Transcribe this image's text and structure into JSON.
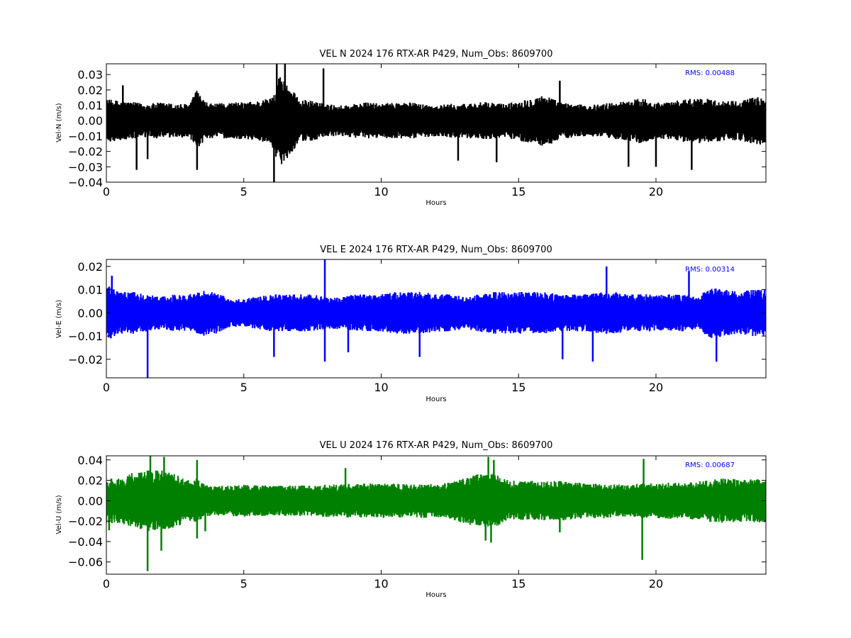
{
  "chart_data": [
    {
      "type": "line",
      "title": "VEL N 2024 176 RTX-AR  P429, Num_Obs: 8609700",
      "xlabel": "Hours",
      "ylabel": "Vel-N (m/s)",
      "annotation": "RMS:  0.00488",
      "annotation_color": "#0000ff",
      "color": "#000000",
      "xlim": [
        0,
        24
      ],
      "ylim": [
        -0.04,
        0.037
      ],
      "x_ticks": [
        0,
        5,
        10,
        15,
        20
      ],
      "y_ticks": [
        -0.04,
        -0.03,
        -0.02,
        -0.01,
        0.0,
        0.01,
        0.02,
        0.03
      ],
      "y_tick_labels": [
        "−0.04",
        "−0.03",
        "−0.02",
        "−0.01",
        "0.00",
        "0.01",
        "0.02",
        "0.03"
      ],
      "rms": 0.00488,
      "num_obs": 8609700,
      "envelope": [
        [
          0,
          0.014
        ],
        [
          0.5,
          0.013
        ],
        [
          1,
          0.012
        ],
        [
          1.5,
          0.011
        ],
        [
          2,
          0.012
        ],
        [
          2.5,
          0.011
        ],
        [
          3,
          0.011
        ],
        [
          3.3,
          0.02
        ],
        [
          3.6,
          0.012
        ],
        [
          4,
          0.011
        ],
        [
          4.5,
          0.012
        ],
        [
          5,
          0.012
        ],
        [
          5.5,
          0.013
        ],
        [
          6,
          0.015
        ],
        [
          6.3,
          0.03
        ],
        [
          6.7,
          0.022
        ],
        [
          7,
          0.014
        ],
        [
          7.5,
          0.013
        ],
        [
          8,
          0.011
        ],
        [
          8.5,
          0.01
        ],
        [
          9,
          0.011
        ],
        [
          9.5,
          0.012
        ],
        [
          10,
          0.011
        ],
        [
          10.5,
          0.012
        ],
        [
          11,
          0.012
        ],
        [
          11.5,
          0.011
        ],
        [
          12,
          0.01
        ],
        [
          12.5,
          0.011
        ],
        [
          13,
          0.011
        ],
        [
          13.5,
          0.012
        ],
        [
          14,
          0.012
        ],
        [
          14.5,
          0.011
        ],
        [
          15,
          0.013
        ],
        [
          15.5,
          0.015
        ],
        [
          16,
          0.017
        ],
        [
          16.5,
          0.012
        ],
        [
          17,
          0.011
        ],
        [
          17.5,
          0.01
        ],
        [
          18,
          0.011
        ],
        [
          18.5,
          0.012
        ],
        [
          19,
          0.013
        ],
        [
          19.5,
          0.015
        ],
        [
          20,
          0.012
        ],
        [
          20.5,
          0.012
        ],
        [
          21,
          0.014
        ],
        [
          21.5,
          0.015
        ],
        [
          22,
          0.014
        ],
        [
          22.5,
          0.013
        ],
        [
          23,
          0.013
        ],
        [
          23.5,
          0.015
        ],
        [
          24,
          0.016
        ]
      ],
      "spikes": [
        [
          1.1,
          -0.032
        ],
        [
          3.3,
          -0.032
        ],
        [
          6.1,
          -0.041
        ],
        [
          6.2,
          0.037
        ],
        [
          6.5,
          0.037
        ],
        [
          7.9,
          0.034
        ],
        [
          16.5,
          0.026
        ],
        [
          19.0,
          -0.03
        ],
        [
          20.0,
          -0.03
        ],
        [
          21.3,
          -0.032
        ],
        [
          0.6,
          0.023
        ],
        [
          1.5,
          -0.025
        ],
        [
          12.8,
          -0.026
        ],
        [
          14.2,
          -0.027
        ]
      ]
    },
    {
      "type": "line",
      "title": "VEL E 2024 176 RTX-AR  P429, Num_Obs: 8609700",
      "xlabel": "Hours",
      "ylabel": "Vel-E (m/s)",
      "annotation": "RMS:  0.00314",
      "annotation_color": "#0000ff",
      "color": "#0000ff",
      "xlim": [
        0,
        24
      ],
      "ylim": [
        -0.028,
        0.023
      ],
      "x_ticks": [
        0,
        5,
        10,
        15,
        20
      ],
      "y_ticks": [
        -0.02,
        -0.01,
        0.0,
        0.01,
        0.02
      ],
      "y_tick_labels": [
        "−0.02",
        "−0.01",
        "0.00",
        "0.01",
        "0.02"
      ],
      "rms": 0.00314,
      "num_obs": 8609700,
      "envelope": [
        [
          0,
          0.012
        ],
        [
          0.5,
          0.009
        ],
        [
          1,
          0.009
        ],
        [
          1.5,
          0.008
        ],
        [
          2,
          0.007
        ],
        [
          2.5,
          0.008
        ],
        [
          3,
          0.008
        ],
        [
          3.5,
          0.01
        ],
        [
          4,
          0.009
        ],
        [
          4.5,
          0.006
        ],
        [
          5,
          0.006
        ],
        [
          5.5,
          0.007
        ],
        [
          6,
          0.008
        ],
        [
          6.5,
          0.008
        ],
        [
          7,
          0.008
        ],
        [
          7.5,
          0.008
        ],
        [
          8,
          0.007
        ],
        [
          8.5,
          0.007
        ],
        [
          9,
          0.008
        ],
        [
          9.5,
          0.008
        ],
        [
          10,
          0.008
        ],
        [
          10.5,
          0.009
        ],
        [
          11,
          0.009
        ],
        [
          11.5,
          0.009
        ],
        [
          12,
          0.008
        ],
        [
          12.5,
          0.008
        ],
        [
          13,
          0.007
        ],
        [
          13.5,
          0.008
        ],
        [
          14,
          0.009
        ],
        [
          14.5,
          0.009
        ],
        [
          15,
          0.009
        ],
        [
          15.5,
          0.009
        ],
        [
          16,
          0.009
        ],
        [
          16.5,
          0.008
        ],
        [
          17,
          0.008
        ],
        [
          17.5,
          0.008
        ],
        [
          18,
          0.009
        ],
        [
          18.5,
          0.009
        ],
        [
          19,
          0.008
        ],
        [
          19.5,
          0.008
        ],
        [
          20,
          0.008
        ],
        [
          20.5,
          0.008
        ],
        [
          21,
          0.008
        ],
        [
          21.5,
          0.007
        ],
        [
          22,
          0.011
        ],
        [
          22.5,
          0.01
        ],
        [
          23,
          0.009
        ],
        [
          23.5,
          0.01
        ],
        [
          24,
          0.01
        ]
      ],
      "spikes": [
        [
          1.5,
          -0.029
        ],
        [
          7.95,
          0.023
        ],
        [
          7.95,
          -0.021
        ],
        [
          6.1,
          -0.019
        ],
        [
          8.8,
          -0.017
        ],
        [
          11.4,
          -0.019
        ],
        [
          16.6,
          -0.02
        ],
        [
          17.7,
          -0.021
        ],
        [
          18.2,
          0.02
        ],
        [
          21.2,
          0.018
        ],
        [
          22.2,
          -0.021
        ],
        [
          0.2,
          0.016
        ]
      ]
    },
    {
      "type": "line",
      "title": "VEL U 2024 176 RTX-AR  P429, Num_Obs: 8609700",
      "xlabel": "Hours",
      "ylabel": "Vel-U (m/s)",
      "annotation": "RMS:  0.00687",
      "annotation_color": "#0000ff",
      "color": "#008000",
      "xlim": [
        0,
        24
      ],
      "ylim": [
        -0.072,
        0.044
      ],
      "x_ticks": [
        0,
        5,
        10,
        15,
        20
      ],
      "y_ticks": [
        -0.06,
        -0.04,
        -0.02,
        0.0,
        0.02,
        0.04
      ],
      "y_tick_labels": [
        "−0.06",
        "−0.04",
        "−0.02",
        "0.00",
        "0.02",
        "0.04"
      ],
      "rms": 0.00687,
      "num_obs": 8609700,
      "envelope": [
        [
          0,
          0.022
        ],
        [
          0.5,
          0.022
        ],
        [
          1,
          0.028
        ],
        [
          1.5,
          0.03
        ],
        [
          2,
          0.03
        ],
        [
          2.5,
          0.026
        ],
        [
          3,
          0.02
        ],
        [
          3.3,
          0.022
        ],
        [
          3.6,
          0.015
        ],
        [
          4,
          0.015
        ],
        [
          4.5,
          0.015
        ],
        [
          5,
          0.016
        ],
        [
          5.5,
          0.015
        ],
        [
          6,
          0.015
        ],
        [
          6.5,
          0.015
        ],
        [
          7,
          0.015
        ],
        [
          7.5,
          0.015
        ],
        [
          8,
          0.016
        ],
        [
          8.5,
          0.016
        ],
        [
          9,
          0.017
        ],
        [
          9.5,
          0.017
        ],
        [
          10,
          0.017
        ],
        [
          10.5,
          0.017
        ],
        [
          11,
          0.016
        ],
        [
          11.5,
          0.017
        ],
        [
          12,
          0.016
        ],
        [
          12.5,
          0.018
        ],
        [
          13,
          0.022
        ],
        [
          13.5,
          0.026
        ],
        [
          14,
          0.028
        ],
        [
          14.5,
          0.021
        ],
        [
          15,
          0.019
        ],
        [
          15.5,
          0.02
        ],
        [
          16,
          0.019
        ],
        [
          16.5,
          0.02
        ],
        [
          17,
          0.018
        ],
        [
          17.5,
          0.017
        ],
        [
          18,
          0.018
        ],
        [
          18.5,
          0.016
        ],
        [
          19,
          0.016
        ],
        [
          19.5,
          0.017
        ],
        [
          20,
          0.017
        ],
        [
          20.5,
          0.018
        ],
        [
          21,
          0.017
        ],
        [
          21.5,
          0.019
        ],
        [
          22,
          0.021
        ],
        [
          22.5,
          0.022
        ],
        [
          23,
          0.021
        ],
        [
          23.5,
          0.021
        ],
        [
          24,
          0.022
        ]
      ],
      "spikes": [
        [
          1.5,
          -0.069
        ],
        [
          2.0,
          -0.049
        ],
        [
          1.6,
          0.044
        ],
        [
          2.1,
          0.043
        ],
        [
          3.3,
          0.04
        ],
        [
          3.3,
          -0.037
        ],
        [
          3.6,
          -0.03
        ],
        [
          8.7,
          0.032
        ],
        [
          13.9,
          0.043
        ],
        [
          14.1,
          0.04
        ],
        [
          13.8,
          -0.039
        ],
        [
          14.0,
          -0.041
        ],
        [
          19.5,
          -0.058
        ],
        [
          19.55,
          0.041
        ],
        [
          16.5,
          -0.031
        ],
        [
          0.1,
          -0.029
        ]
      ]
    }
  ]
}
